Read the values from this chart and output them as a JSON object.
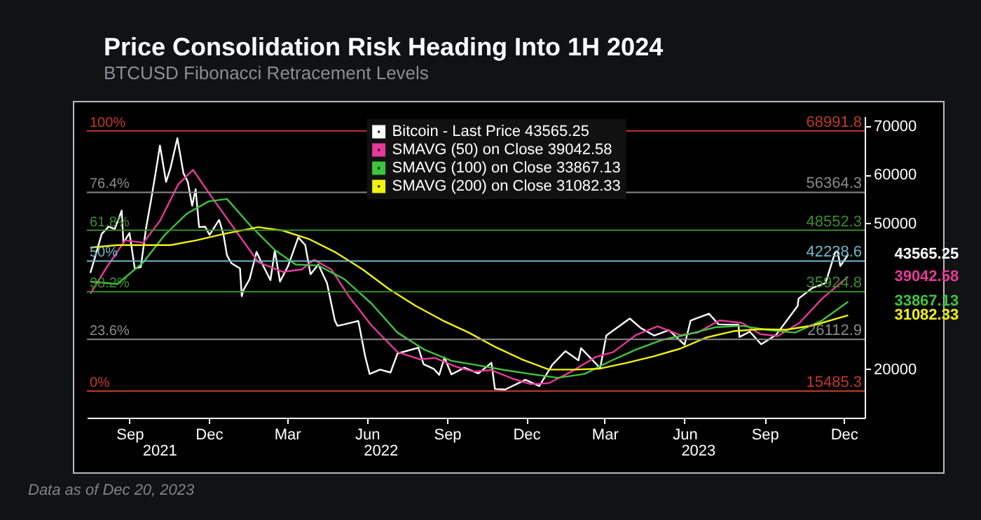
{
  "chart_data": {
    "type": "line",
    "title": "Price Consolidation Risk Heading Into 1H 2024",
    "subtitle": "BTCUSD Fibonacci Retracement Levels",
    "annotations": [
      "Data as of Dec 20, 2023",
      {
        "text": "100%",
        "y": 68991.8
      },
      {
        "text": "76.4%",
        "y": 56364.3
      },
      {
        "text": "61.8%",
        "y": 48552.3
      },
      {
        "text": "50%",
        "y": 42238.6
      },
      {
        "text": "38.2%",
        "y": 35924.8
      },
      {
        "text": "23.6%",
        "y": 26112.9
      },
      {
        "text": "0%",
        "y": 15485.3
      },
      {
        "text": "43565.25",
        "x": "2023-12-20",
        "y": 43565.25
      },
      {
        "text": "39042.58",
        "x": "2023-12-20",
        "y": 39042.58
      },
      {
        "text": "33867.13",
        "x": "2023-12-20",
        "y": 33867.13
      },
      {
        "text": "31082.33",
        "x": "2023-12-20",
        "y": 31082.33
      }
    ],
    "xlim": [
      "2021-07-28",
      "2024-01-08"
    ],
    "x2lim": [
      "2021-07-28",
      "2024-01-08"
    ],
    "xticks": [
      {
        "value": "2021-09-15",
        "label": "Sep"
      },
      {
        "value": "2021-12-15",
        "label": "Dec"
      },
      {
        "value": "2022-03-15",
        "label": "Mar"
      },
      {
        "value": "2022-06-15",
        "label": "Jun"
      },
      {
        "value": "2022-09-15",
        "label": "Sep"
      },
      {
        "value": "2022-12-15",
        "label": "Dec"
      },
      {
        "value": "2023-03-15",
        "label": "Mar"
      },
      {
        "value": "2023-06-15",
        "label": "Jun"
      },
      {
        "value": "2023-09-15",
        "label": "Sep"
      },
      {
        "value": "2023-12-15",
        "label": "Dec"
      }
    ],
    "x2ticks": [
      {
        "value": "2021-10-20",
        "label": "2021"
      },
      {
        "value": "2022-07-01",
        "label": "2022"
      },
      {
        "value": "2023-07-01",
        "label": "2023"
      }
    ],
    "ylim": [
      10000,
      72000
    ],
    "yticks": [
      20000,
      50000,
      60000,
      70000
    ],
    "legend": "top",
    "grid": false,
    "ref_lines": [
      {
        "axis": "y",
        "value": 68991.8,
        "label": "68991.8",
        "color": "#c0392b"
      },
      {
        "axis": "y",
        "value": 56364.3,
        "label": "56364.3",
        "color": "#8a8a8a"
      },
      {
        "axis": "y",
        "value": 48552.3,
        "label": "48552.3",
        "color": "#3d8b2f"
      },
      {
        "axis": "y",
        "value": 42238.6,
        "label": "42238.6",
        "color": "#6fb8c8"
      },
      {
        "axis": "y",
        "value": 35924.8,
        "label": "35924.8",
        "color": "#3d8b2f"
      },
      {
        "axis": "y",
        "value": 26112.9,
        "label": "26112.9",
        "color": "#8a8a8a"
      },
      {
        "axis": "y",
        "value": 15485.3,
        "label": "15485.3",
        "color": "#c0392b"
      }
    ],
    "series": [
      {
        "name": "Bitcoin - Last Price 43565.25",
        "color": "#ffffff",
        "x": [
          "2021-08-01",
          "2021-08-08",
          "2021-08-14",
          "2021-08-22",
          "2021-08-29",
          "2021-09-06",
          "2021-09-08",
          "2021-09-15",
          "2021-09-21",
          "2021-09-28",
          "2021-10-04",
          "2021-10-10",
          "2021-10-16",
          "2021-10-20",
          "2021-10-27",
          "2021-11-01",
          "2021-11-09",
          "2021-11-16",
          "2021-11-21",
          "2021-11-26",
          "2021-11-30",
          "2021-12-04",
          "2021-12-11",
          "2021-12-16",
          "2021-12-27",
          "2022-01-01",
          "2022-01-05",
          "2022-01-10",
          "2022-01-20",
          "2022-01-22",
          "2022-01-24",
          "2022-01-31",
          "2022-02-08",
          "2022-02-13",
          "2022-02-24",
          "2022-03-01",
          "2022-03-07",
          "2022-03-16",
          "2022-03-28",
          "2022-04-05",
          "2022-04-11",
          "2022-04-20",
          "2022-04-30",
          "2022-05-09",
          "2022-05-12",
          "2022-05-20",
          "2022-06-05",
          "2022-06-13",
          "2022-06-18",
          "2022-06-30",
          "2022-07-12",
          "2022-07-20",
          "2022-07-30",
          "2022-08-13",
          "2022-08-19",
          "2022-08-31",
          "2022-09-06",
          "2022-09-12",
          "2022-09-20",
          "2022-10-05",
          "2022-10-21",
          "2022-11-05",
          "2022-11-09",
          "2022-11-21",
          "2022-12-14",
          "2022-12-30",
          "2023-01-14",
          "2023-01-29",
          "2023-02-13",
          "2023-02-16",
          "2023-03-10",
          "2023-03-17",
          "2023-04-13",
          "2023-04-26",
          "2023-05-11",
          "2023-05-28",
          "2023-06-15",
          "2023-06-22",
          "2023-07-13",
          "2023-07-24",
          "2023-08-16",
          "2023-08-17",
          "2023-08-29",
          "2023-09-11",
          "2023-09-28",
          "2023-10-23",
          "2023-10-24",
          "2023-11-09",
          "2023-11-24",
          "2023-12-05",
          "2023-12-08",
          "2023-12-11",
          "2023-12-20"
        ],
        "values": [
          39800,
          44000,
          47800,
          49300,
          48800,
          52600,
          46000,
          48000,
          40700,
          41000,
          49000,
          55000,
          61500,
          66000,
          58500,
          61300,
          67500,
          60300,
          58500,
          53600,
          57000,
          49200,
          49300,
          47600,
          50700,
          47700,
          43400,
          41800,
          40700,
          35000,
          36300,
          38500,
          44100,
          42200,
          38300,
          44400,
          38000,
          41100,
          47100,
          45500,
          39500,
          41500,
          37700,
          30000,
          28900,
          29200,
          29900,
          22500,
          19000,
          19900,
          19300,
          23200,
          23700,
          24400,
          21000,
          20000,
          18800,
          22400,
          18900,
          20300,
          19100,
          21300,
          15900,
          15800,
          17800,
          16500,
          20900,
          23700,
          21800,
          24300,
          20200,
          26900,
          30400,
          28400,
          26900,
          28000,
          25000,
          30000,
          31400,
          29200,
          29100,
          26600,
          27700,
          25100,
          27000,
          33000,
          34500,
          36700,
          37700,
          44000,
          44200,
          41200,
          43565.25
        ]
      },
      {
        "name": "SMAVG (50) on Close 39042.58",
        "color": "#e6399b",
        "x": [
          "2021-08-01",
          "2021-08-20",
          "2021-09-10",
          "2021-10-01",
          "2021-10-20",
          "2021-11-10",
          "2021-11-27",
          "2021-12-20",
          "2022-01-15",
          "2022-02-10",
          "2022-03-10",
          "2022-04-01",
          "2022-04-15",
          "2022-05-05",
          "2022-05-25",
          "2022-06-20",
          "2022-07-20",
          "2022-08-15",
          "2022-09-01",
          "2022-09-25",
          "2022-10-15",
          "2022-11-05",
          "2022-11-30",
          "2022-12-20",
          "2023-01-10",
          "2023-02-05",
          "2023-03-05",
          "2023-03-25",
          "2023-04-20",
          "2023-05-15",
          "2023-06-10",
          "2023-06-30",
          "2023-07-25",
          "2023-08-20",
          "2023-09-10",
          "2023-09-30",
          "2023-10-25",
          "2023-11-20",
          "2023-12-20"
        ],
        "values": [
          35500,
          41000,
          46500,
          46000,
          50500,
          58000,
          61000,
          55000,
          48500,
          42000,
          40000,
          40500,
          42500,
          40500,
          35000,
          29000,
          23500,
          22000,
          22300,
          20500,
          19500,
          19800,
          18000,
          16900,
          17100,
          19500,
          22500,
          23500,
          27000,
          28800,
          27000,
          27500,
          30000,
          29500,
          27200,
          26800,
          29500,
          34500,
          39042.58
        ]
      },
      {
        "name": "SMAVG (100) on Close 33867.13",
        "color": "#3ec43e",
        "x": [
          "2021-08-01",
          "2021-09-01",
          "2021-10-01",
          "2021-10-25",
          "2021-11-20",
          "2021-12-15",
          "2022-01-05",
          "2022-02-01",
          "2022-03-01",
          "2022-03-25",
          "2022-04-20",
          "2022-05-20",
          "2022-06-20",
          "2022-07-20",
          "2022-08-20",
          "2022-09-20",
          "2022-10-20",
          "2022-11-20",
          "2022-12-20",
          "2023-01-20",
          "2023-02-20",
          "2023-03-20",
          "2023-04-20",
          "2023-05-20",
          "2023-06-20",
          "2023-07-20",
          "2023-08-20",
          "2023-09-20",
          "2023-10-20",
          "2023-11-20",
          "2023-12-20"
        ],
        "values": [
          38000,
          37500,
          42000,
          47500,
          52000,
          54500,
          55000,
          49500,
          44500,
          41500,
          41300,
          38500,
          33500,
          27500,
          24000,
          21700,
          20800,
          19800,
          19000,
          18200,
          19000,
          21500,
          24000,
          26000,
          27200,
          28600,
          28900,
          28000,
          27500,
          30000,
          33867.13
        ]
      },
      {
        "name": "SMAVG (200) on Close 31082.33",
        "color": "#f2f20f",
        "x": [
          "2021-08-01",
          "2021-09-01",
          "2021-10-01",
          "2021-11-01",
          "2021-12-01",
          "2022-01-01",
          "2022-02-10",
          "2022-03-10",
          "2022-04-10",
          "2022-05-10",
          "2022-06-10",
          "2022-07-10",
          "2022-08-10",
          "2022-09-10",
          "2022-10-10",
          "2022-11-10",
          "2022-12-10",
          "2023-01-10",
          "2023-02-10",
          "2023-03-10",
          "2023-04-10",
          "2023-05-10",
          "2023-06-10",
          "2023-07-10",
          "2023-08-10",
          "2023-09-10",
          "2023-10-10",
          "2023-11-10",
          "2023-12-20"
        ],
        "values": [
          45000,
          45500,
          45500,
          45500,
          46500,
          47800,
          49200,
          48500,
          46700,
          44000,
          40500,
          36500,
          33000,
          30000,
          27500,
          24500,
          22000,
          19900,
          19900,
          20100,
          21300,
          22600,
          24200,
          26500,
          27800,
          28200,
          28100,
          29000,
          31082.33
        ]
      }
    ]
  }
}
